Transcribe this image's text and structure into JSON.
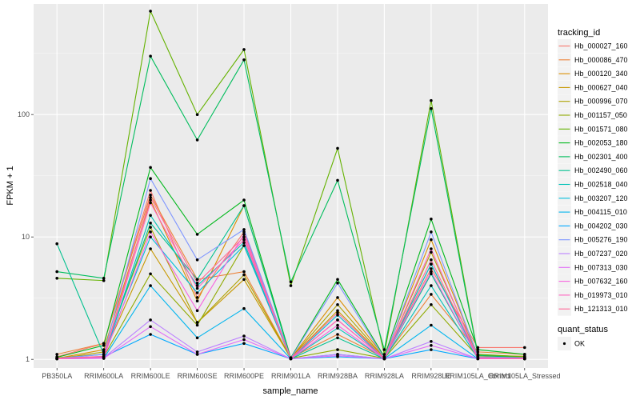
{
  "chart_data": {
    "type": "line",
    "xlabel": "sample_name",
    "ylabel": "FPKM + 1",
    "y_scale": "log10",
    "ylim": [
      0.85,
      800
    ],
    "y_ticks": [
      1,
      10,
      100
    ],
    "y_tick_labels": [
      "1",
      "10",
      "100"
    ],
    "grid": true,
    "legend_position": "right",
    "categories": [
      "PB350LA",
      "RRIM600LA",
      "RRIM600LE",
      "RRIM600SE",
      "RRIM600PE",
      "RRIM901LA",
      "RRIM928BA",
      "RRIM928LA",
      "RRIM928LE",
      "RRIM105LA_Control",
      "RRIM105LA_Stressed"
    ],
    "legend": {
      "title": "tracking_id",
      "quant_title": "quant_status",
      "quant_label": "OK"
    },
    "series": [
      {
        "name": "Hb_000027_160",
        "color": "#F8766D",
        "values": [
          1.05,
          1.35,
          24,
          3.2,
          11,
          1.02,
          2.1,
          1.02,
          5.5,
          1.25,
          1.25
        ]
      },
      {
        "name": "Hb_000086_470",
        "color": "#EC8239",
        "values": [
          1.1,
          1.35,
          22,
          4.5,
          5.2,
          1.03,
          1.6,
          1.03,
          3.4,
          1.15,
          1.1
        ]
      },
      {
        "name": "Hb_000120_340",
        "color": "#DB8E00",
        "values": [
          1.02,
          1.2,
          20,
          3.0,
          18,
          1.02,
          3.2,
          1.05,
          9.5,
          1.08,
          1.06
        ]
      },
      {
        "name": "Hb_000627_040",
        "color": "#C79800",
        "values": [
          1.03,
          1.1,
          8.0,
          2.0,
          4.5,
          1.02,
          2.5,
          1.03,
          6.0,
          1.05,
          1.04
        ]
      },
      {
        "name": "Hb_000996_070",
        "color": "#AEA200",
        "values": [
          1.01,
          1.15,
          12,
          2.0,
          4.9,
          1.02,
          2.8,
          1.03,
          7.5,
          1.07,
          1.05
        ]
      },
      {
        "name": "Hb_001157_050",
        "color": "#8FAA00",
        "values": [
          1.02,
          1.05,
          5.0,
          1.9,
          8.5,
          1.02,
          1.2,
          1.02,
          2.8,
          1.05,
          1.02
        ]
      },
      {
        "name": "Hb_001571_080",
        "color": "#64B200",
        "values": [
          4.6,
          4.4,
          700,
          100,
          340,
          4.0,
          53,
          1.1,
          130,
          1.1,
          1.05
        ]
      },
      {
        "name": "Hb_002053_180",
        "color": "#00B81B",
        "values": [
          1.04,
          1.3,
          37,
          10.5,
          20,
          1.03,
          4.5,
          1.05,
          14,
          1.2,
          1.1
        ]
      },
      {
        "name": "Hb_002301_400",
        "color": "#00BD5C",
        "values": [
          5.2,
          4.6,
          300,
          62,
          280,
          4.3,
          29,
          1.2,
          112,
          1.08,
          1.03
        ]
      },
      {
        "name": "Hb_002490_060",
        "color": "#00C08E",
        "values": [
          8.8,
          1.1,
          13,
          4.5,
          18,
          1.01,
          1.5,
          1.01,
          5.0,
          1.03,
          1.02
        ]
      },
      {
        "name": "Hb_002518_040",
        "color": "#00C1B7",
        "values": [
          1.01,
          1.05,
          15,
          4.0,
          9.0,
          1.01,
          1.8,
          1.01,
          4.0,
          1.02,
          1.01
        ]
      },
      {
        "name": "Hb_003207_120",
        "color": "#00BDDC",
        "values": [
          1.02,
          1.1,
          10,
          3.5,
          8.5,
          1.01,
          2.3,
          1.01,
          6.0,
          1.02,
          1.01
        ]
      },
      {
        "name": "Hb_004115_010",
        "color": "#00B5EE",
        "values": [
          1.01,
          1.02,
          4.0,
          1.5,
          2.6,
          1.01,
          1.1,
          1.01,
          1.9,
          1.01,
          1.01
        ]
      },
      {
        "name": "Hb_004202_030",
        "color": "#00A7FF",
        "values": [
          1.02,
          1.05,
          1.6,
          1.1,
          1.35,
          1.01,
          1.05,
          1.01,
          1.2,
          1.01,
          1.01
        ]
      },
      {
        "name": "Hb_005276_190",
        "color": "#7F96FF",
        "values": [
          1.02,
          1.1,
          30,
          6.5,
          11.5,
          1.02,
          4.2,
          1.02,
          11,
          1.05,
          1.03
        ]
      },
      {
        "name": "Hb_007237_020",
        "color": "#BC81FF",
        "values": [
          1.01,
          1.03,
          2.1,
          1.15,
          1.55,
          1.01,
          1.1,
          1.01,
          1.4,
          1.01,
          1.01
        ]
      },
      {
        "name": "Hb_007313_030",
        "color": "#E26EF7",
        "values": [
          1.01,
          1.02,
          1.85,
          1.1,
          1.45,
          1.01,
          1.07,
          1.01,
          1.3,
          1.01,
          1.01
        ]
      },
      {
        "name": "Hb_007632_160",
        "color": "#F863DF",
        "values": [
          1.01,
          1.03,
          11,
          2.5,
          10.5,
          1.01,
          1.9,
          1.01,
          5.2,
          1.02,
          1.01
        ]
      },
      {
        "name": "Hb_019973_010",
        "color": "#FF62BF",
        "values": [
          1.02,
          1.04,
          19,
          3.8,
          9.5,
          1.01,
          2.1,
          1.01,
          8.0,
          1.02,
          1.02
        ]
      },
      {
        "name": "Hb_121313_010",
        "color": "#FF6A98",
        "values": [
          1.02,
          1.06,
          21,
          4.2,
          10,
          1.02,
          2.4,
          1.02,
          6.5,
          1.03,
          1.02
        ]
      }
    ]
  }
}
